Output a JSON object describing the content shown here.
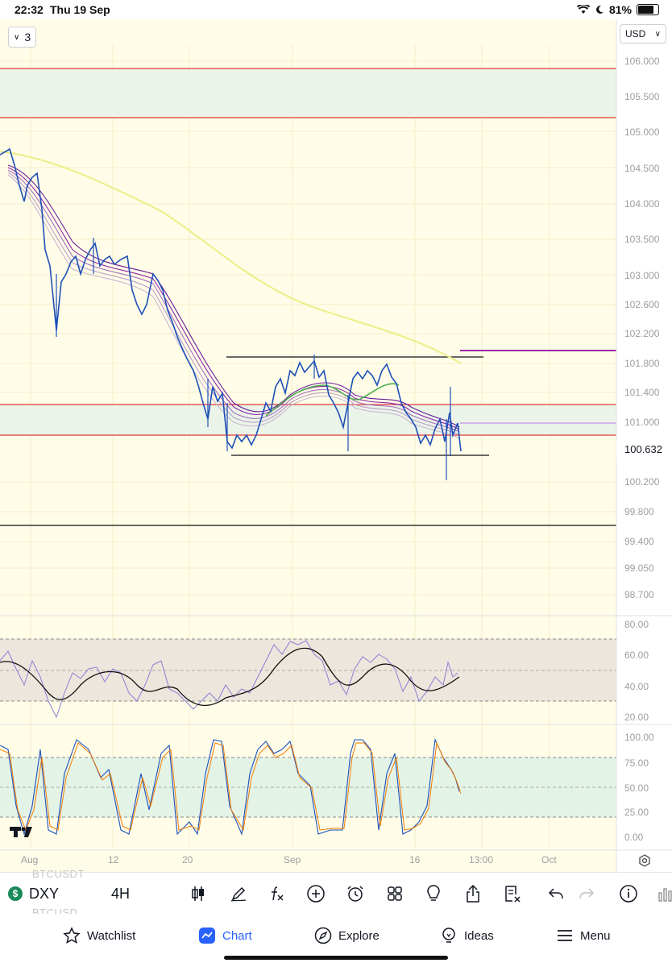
{
  "status_bar": {
    "time": "22:32",
    "date": "Thu 19 Sep",
    "battery": "81%"
  },
  "chart": {
    "interval_badge": "3",
    "currency": "USD",
    "price_axis": [
      "106.000",
      "105.500",
      "105.000",
      "104.500",
      "104.000",
      "103.500",
      "103.000",
      "102.600",
      "102.200",
      "101.800",
      "101.400",
      "101.000",
      "100.632",
      "100.200",
      "99.800",
      "99.400",
      "99.050",
      "98.700"
    ],
    "current_price": "100.632",
    "rsi_axis": [
      "80.00",
      "60.00",
      "40.00",
      "20.00"
    ],
    "stoch_axis": [
      "100.00",
      "75.00",
      "50.00",
      "25.00",
      "0.00"
    ],
    "time_axis": [
      "Aug",
      "12",
      "20",
      "Sep",
      "16",
      "13:00",
      "Oct"
    ],
    "colors": {
      "background": "#fffde8",
      "red_line": "#e53935",
      "zone": "#eaf4e8",
      "rsi_band": "#ede6dc",
      "stoch_band": "#e3f3e6",
      "candle": "#1e4fb8",
      "ma": "#ecef8c",
      "purple": "#9c27b0"
    }
  },
  "toolbar": {
    "ghost_top": "BTCUSDT",
    "ghost_bottom": "BTCUSD",
    "symbol": "DXY",
    "interval": "4H",
    "icons": [
      "candles-icon",
      "pencil-icon",
      "fx-icon",
      "plus-circle-icon",
      "alarm-icon",
      "grid-icon",
      "lightbulb-icon",
      "share-icon",
      "clear-drawings-icon",
      "undo-icon",
      "redo-icon",
      "info-icon",
      "bar-chart-icon"
    ]
  },
  "nav": {
    "watchlist": "Watchlist",
    "chart": "Chart",
    "explore": "Explore",
    "ideas": "Ideas",
    "menu": "Menu"
  }
}
